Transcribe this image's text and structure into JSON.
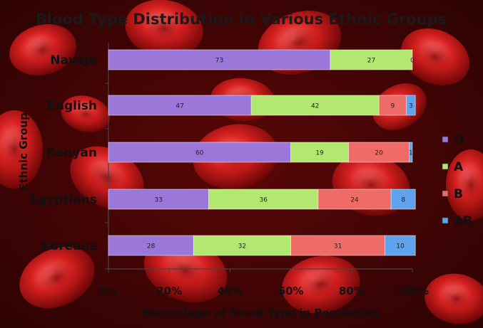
{
  "chart_data": {
    "type": "bar",
    "orientation": "horizontal",
    "stacked": "percent",
    "title": "Blood Type Distribution in Various Ethnic Groups",
    "xlabel": "Percentage of Blood Type in Population",
    "ylabel": "Ethnic Group",
    "categories": [
      "Navajo",
      "English",
      "Kenyan",
      "Egyptians",
      "Koreans"
    ],
    "xlim": [
      0,
      100
    ],
    "x_ticks": [
      "0%",
      "20%",
      "40%",
      "60%",
      "80%",
      "100%"
    ],
    "series": [
      {
        "name": "O",
        "color": "#9b77d9",
        "values": [
          73,
          47,
          60,
          33,
          28
        ]
      },
      {
        "name": "A",
        "color": "#b2e86f",
        "values": [
          27,
          42,
          19,
          36,
          32
        ]
      },
      {
        "name": "B",
        "color": "#ef6b67",
        "values": [
          0,
          9,
          20,
          24,
          31
        ]
      },
      {
        "name": "AB",
        "color": "#5fa3ec",
        "values": [
          0,
          3,
          1,
          8,
          10
        ]
      }
    ],
    "legend_position": "right",
    "grid": false,
    "background": "red blood cells photo"
  }
}
